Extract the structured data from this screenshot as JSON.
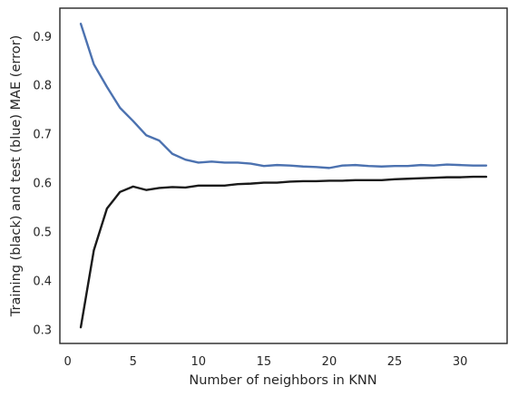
{
  "chart_data": {
    "type": "line",
    "title": "",
    "xlabel": "Number of neighbors in KNN",
    "ylabel": "Training (black) and test (blue) MAE (error)",
    "xlim": [
      -0.6,
      33.6
    ],
    "ylim": [
      0.272,
      0.958
    ],
    "xticks": [
      0,
      5,
      10,
      15,
      20,
      25,
      30
    ],
    "yticks": [
      0.3,
      0.4,
      0.5,
      0.6,
      0.7,
      0.8,
      0.9
    ],
    "ytick_labels": [
      "0.3",
      "0.4",
      "0.5",
      "0.6",
      "0.7",
      "0.8",
      "0.9"
    ],
    "grid": false,
    "legend": "none",
    "x": [
      1,
      2,
      3,
      4,
      5,
      6,
      7,
      8,
      9,
      10,
      11,
      12,
      13,
      14,
      15,
      16,
      17,
      18,
      19,
      20,
      21,
      22,
      23,
      24,
      25,
      26,
      27,
      28,
      29,
      30,
      31,
      32
    ],
    "series": [
      {
        "color": "#4c72b0",
        "values": [
          0.926,
          0.843,
          0.797,
          0.754,
          0.727,
          0.698,
          0.687,
          0.66,
          0.648,
          0.642,
          0.644,
          0.642,
          0.642,
          0.64,
          0.635,
          0.637,
          0.636,
          0.634,
          0.633,
          0.631,
          0.636,
          0.637,
          0.635,
          0.634,
          0.635,
          0.635,
          0.637,
          0.636,
          0.638,
          0.637,
          0.636,
          0.636
        ]
      },
      {
        "color": "#1a1a1a",
        "values": [
          0.305,
          0.463,
          0.548,
          0.582,
          0.593,
          0.586,
          0.59,
          0.592,
          0.591,
          0.595,
          0.595,
          0.595,
          0.598,
          0.599,
          0.601,
          0.601,
          0.603,
          0.604,
          0.604,
          0.605,
          0.605,
          0.606,
          0.606,
          0.606,
          0.608,
          0.609,
          0.61,
          0.611,
          0.612,
          0.612,
          0.613,
          0.613
        ]
      }
    ]
  }
}
